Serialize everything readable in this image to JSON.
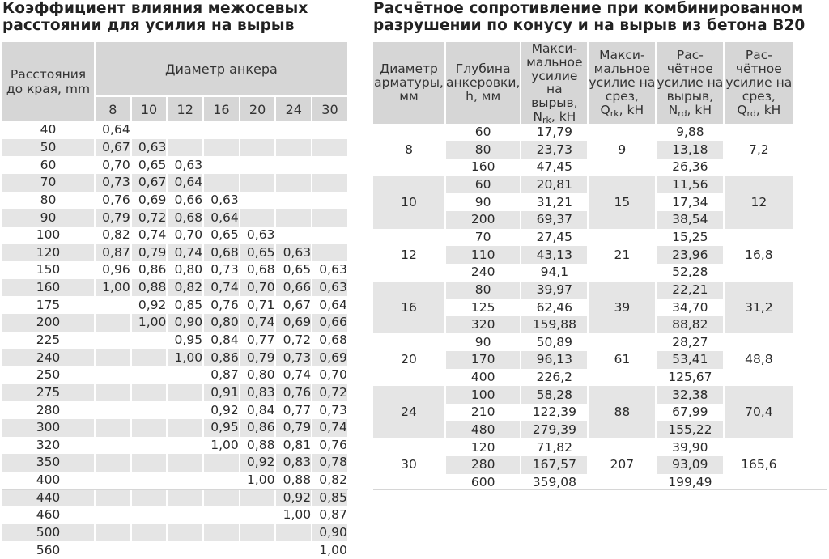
{
  "left": {
    "title_line1": "Коэффициент влияния межосевых",
    "title_line2": "расстоянии для усилия на вырыв",
    "corner_header": "Расстояния до края, mm",
    "span_header": "Диаметр анкера",
    "diameters": [
      "8",
      "10",
      "12",
      "16",
      "20",
      "24",
      "30"
    ],
    "rows": [
      {
        "dist": "40",
        "vals": [
          "0,64",
          "",
          "",
          "",
          "",
          "",
          ""
        ]
      },
      {
        "dist": "50",
        "vals": [
          "0,67",
          "0,63",
          "",
          "",
          "",
          "",
          ""
        ]
      },
      {
        "dist": "60",
        "vals": [
          "0,70",
          "0,65",
          "0,63",
          "",
          "",
          "",
          ""
        ]
      },
      {
        "dist": "70",
        "vals": [
          "0,73",
          "0,67",
          "0,64",
          "",
          "",
          "",
          ""
        ]
      },
      {
        "dist": "80",
        "vals": [
          "0,76",
          "0,69",
          "0,66",
          "0,63",
          "",
          "",
          ""
        ]
      },
      {
        "dist": "90",
        "vals": [
          "0,79",
          "0,72",
          "0,68",
          "0,64",
          "",
          "",
          ""
        ]
      },
      {
        "dist": "100",
        "vals": [
          "0,82",
          "0,74",
          "0,70",
          "0,65",
          "0,63",
          "",
          ""
        ]
      },
      {
        "dist": "120",
        "vals": [
          "0,87",
          "0,79",
          "0,74",
          "0,68",
          "0,65",
          "0,63",
          ""
        ]
      },
      {
        "dist": "150",
        "vals": [
          "0,96",
          "0,86",
          "0,80",
          "0,73",
          "0,68",
          "0,65",
          "0,63"
        ]
      },
      {
        "dist": "160",
        "vals": [
          "1,00",
          "0,88",
          "0,82",
          "0,74",
          "0,70",
          "0,66",
          "0,63"
        ]
      },
      {
        "dist": "175",
        "vals": [
          "",
          "0,92",
          "0,85",
          "0,76",
          "0,71",
          "0,67",
          "0,64"
        ]
      },
      {
        "dist": "200",
        "vals": [
          "",
          "1,00",
          "0,90",
          "0,80",
          "0,74",
          "0,69",
          "0,66"
        ]
      },
      {
        "dist": "225",
        "vals": [
          "",
          "",
          "0,95",
          "0,84",
          "0,77",
          "0,72",
          "0,68"
        ]
      },
      {
        "dist": "240",
        "vals": [
          "",
          "",
          "1,00",
          "0,86",
          "0,79",
          "0,73",
          "0,69"
        ]
      },
      {
        "dist": "250",
        "vals": [
          "",
          "",
          "",
          "0,87",
          "0,80",
          "0,74",
          "0,70"
        ]
      },
      {
        "dist": "275",
        "vals": [
          "",
          "",
          "",
          "0,91",
          "0,83",
          "0,76",
          "0,72"
        ]
      },
      {
        "dist": "280",
        "vals": [
          "",
          "",
          "",
          "0,92",
          "0,84",
          "0,77",
          "0,73"
        ]
      },
      {
        "dist": "300",
        "vals": [
          "",
          "",
          "",
          "0,95",
          "0,86",
          "0,79",
          "0,74"
        ]
      },
      {
        "dist": "320",
        "vals": [
          "",
          "",
          "",
          "1,00",
          "0,88",
          "0,81",
          "0,76"
        ]
      },
      {
        "dist": "350",
        "vals": [
          "",
          "",
          "",
          "",
          "0,92",
          "0,83",
          "0,78"
        ]
      },
      {
        "dist": "400",
        "vals": [
          "",
          "",
          "",
          "",
          "1,00",
          "0,88",
          "0,82"
        ]
      },
      {
        "dist": "440",
        "vals": [
          "",
          "",
          "",
          "",
          "",
          "0,92",
          "0,85"
        ]
      },
      {
        "dist": "460",
        "vals": [
          "",
          "",
          "",
          "",
          "",
          "1,00",
          "0,87"
        ]
      },
      {
        "dist": "500",
        "vals": [
          "",
          "",
          "",
          "",
          "",
          "",
          "0,90"
        ]
      },
      {
        "dist": "560",
        "vals": [
          "",
          "",
          "",
          "",
          "",
          "",
          "1,00"
        ]
      }
    ]
  },
  "right": {
    "title_line1": "Расчётное сопротивление при комбинированном",
    "title_line2": "разрушении по конусу и на вырыв из бетона B20",
    "headers": {
      "diameter": "Диаметр арматуры, мм",
      "depth": "Глубина анкеровки, h, мм",
      "nrk_text": "Макси-мальное усилие на вырыв,",
      "nrk_sym": "N",
      "nrk_sub": "rk",
      "nrk_unit": ", kH",
      "qrk_text": "Макси-мальное усилие на срез,",
      "qrk_sym": "Q",
      "qrk_sub": "rk",
      "qrk_unit": ", kH",
      "nrd_text": "Рас-чётное усилие на вырыв,",
      "nrd_sym": "N",
      "nrd_sub": "rd",
      "nrd_unit": ", kH",
      "qrd_text": "Рас-чётное усилие на срез,",
      "qrd_sym": "Q",
      "qrd_sub": "rd",
      "qrd_unit": ", kH"
    },
    "groups": [
      {
        "diameter": "8",
        "qrk": "9",
        "qrd": "7,2",
        "rows": [
          {
            "h": "60",
            "nrk": "17,79",
            "nrd": "9,88"
          },
          {
            "h": "80",
            "nrk": "23,73",
            "nrd": "13,18"
          },
          {
            "h": "160",
            "nrk": "47,45",
            "nrd": "26,36"
          }
        ]
      },
      {
        "diameter": "10",
        "qrk": "15",
        "qrd": "12",
        "rows": [
          {
            "h": "60",
            "nrk": "20,81",
            "nrd": "11,56"
          },
          {
            "h": "90",
            "nrk": "31,21",
            "nrd": "17,34"
          },
          {
            "h": "200",
            "nrk": "69,37",
            "nrd": "38,54"
          }
        ]
      },
      {
        "diameter": "12",
        "qrk": "21",
        "qrd": "16,8",
        "rows": [
          {
            "h": "70",
            "nrk": "27,45",
            "nrd": "15,25"
          },
          {
            "h": "110",
            "nrk": "43,13",
            "nrd": "23,96"
          },
          {
            "h": "240",
            "nrk": "94,1",
            "nrd": "52,28"
          }
        ]
      },
      {
        "diameter": "16",
        "qrk": "39",
        "qrd": "31,2",
        "rows": [
          {
            "h": "80",
            "nrk": "39,97",
            "nrd": "22,21"
          },
          {
            "h": "125",
            "nrk": "62,46",
            "nrd": "34,70"
          },
          {
            "h": "320",
            "nrk": "159,88",
            "nrd": "88,82"
          }
        ]
      },
      {
        "diameter": "20",
        "qrk": "61",
        "qrd": "48,8",
        "rows": [
          {
            "h": "90",
            "nrk": "50,89",
            "nrd": "28,27"
          },
          {
            "h": "170",
            "nrk": "96,13",
            "nrd": "53,41"
          },
          {
            "h": "400",
            "nrk": "226,2",
            "nrd": "125,67"
          }
        ]
      },
      {
        "diameter": "24",
        "qrk": "88",
        "qrd": "70,4",
        "rows": [
          {
            "h": "100",
            "nrk": "58,28",
            "nrd": "32,38"
          },
          {
            "h": "210",
            "nrk": "122,39",
            "nrd": "67,99"
          },
          {
            "h": "480",
            "nrk": "279,39",
            "nrd": "155,22"
          }
        ]
      },
      {
        "diameter": "30",
        "qrk": "207",
        "qrd": "165,6",
        "rows": [
          {
            "h": "120",
            "nrk": "71,82",
            "nrd": "39,90"
          },
          {
            "h": "280",
            "nrk": "167,57",
            "nrd": "93,09"
          },
          {
            "h": "600",
            "nrk": "359,08",
            "nrd": "199,49"
          }
        ]
      }
    ]
  },
  "colors": {
    "header_bg": "#d6d6d6",
    "stripe_bg": "#e5e5e5",
    "text": "#2a2a2a"
  }
}
